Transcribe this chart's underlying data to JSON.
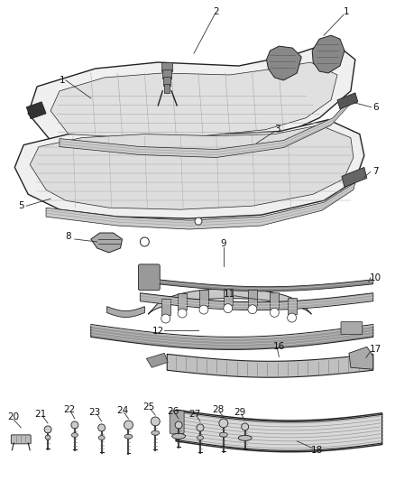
{
  "bg_color": "#ffffff",
  "fig_width": 4.38,
  "fig_height": 5.33,
  "dpi": 100,
  "line_color": "#222222",
  "light_gray": "#cccccc",
  "med_gray": "#888888",
  "dark_gray": "#444444",
  "callout_fs": 7.5
}
